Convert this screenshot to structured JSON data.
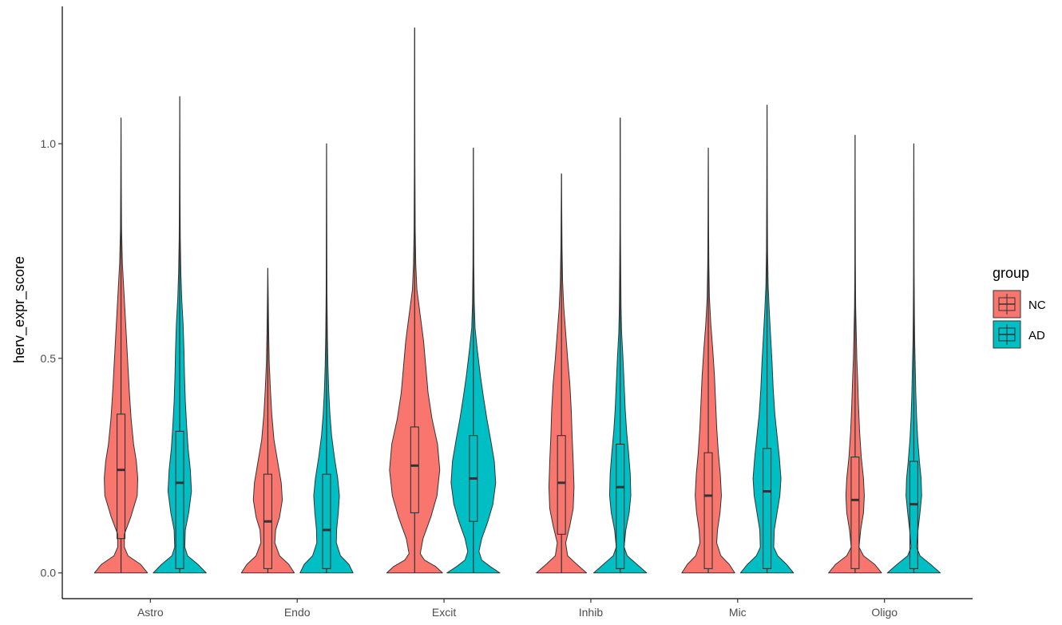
{
  "chart_data": {
    "type": "violin",
    "categories": [
      "Astro",
      "Endo",
      "Excit",
      "Inhib",
      "Mic",
      "Oligo"
    ],
    "ylabel": "herv_expr_score",
    "xlabel": "",
    "ylim": [
      -0.06,
      1.32
    ],
    "yticks": [
      0.0,
      0.5,
      1.0
    ],
    "ytick_labels": [
      "0.0",
      "0.5",
      "1.0"
    ],
    "grid": false,
    "legend": {
      "title": "group",
      "placement": "right",
      "entries": [
        "NC",
        "AD"
      ]
    },
    "colors": {
      "NC": "#F8766D",
      "AD": "#00BFC4"
    },
    "series": [
      {
        "name": "NC",
        "max": [
          1.06,
          0.71,
          1.27,
          0.93,
          0.99,
          1.02
        ],
        "q1": [
          0.08,
          0.01,
          0.14,
          0.09,
          0.01,
          0.01
        ],
        "median": [
          0.24,
          0.12,
          0.25,
          0.21,
          0.18,
          0.17
        ],
        "q3": [
          0.37,
          0.23,
          0.34,
          0.32,
          0.28,
          0.27
        ],
        "violin_width": [
          [
            [
              0,
              0.95
            ],
            [
              0.02,
              0.7
            ],
            [
              0.04,
              0.25
            ],
            [
              0.06,
              0.12
            ],
            [
              0.09,
              0.12
            ],
            [
              0.13,
              0.35
            ],
            [
              0.18,
              0.58
            ],
            [
              0.22,
              0.6
            ],
            [
              0.26,
              0.55
            ],
            [
              0.3,
              0.45
            ],
            [
              0.36,
              0.36
            ],
            [
              0.42,
              0.3
            ],
            [
              0.48,
              0.25
            ],
            [
              0.54,
              0.2
            ],
            [
              0.6,
              0.15
            ],
            [
              0.66,
              0.1
            ],
            [
              0.72,
              0.05
            ],
            [
              0.8,
              0.02
            ],
            [
              0.9,
              0.01
            ],
            [
              1.06,
              0
            ]
          ],
          [
            [
              0,
              0.95
            ],
            [
              0.02,
              0.75
            ],
            [
              0.04,
              0.42
            ],
            [
              0.07,
              0.25
            ],
            [
              0.1,
              0.28
            ],
            [
              0.13,
              0.42
            ],
            [
              0.17,
              0.52
            ],
            [
              0.21,
              0.48
            ],
            [
              0.26,
              0.35
            ],
            [
              0.31,
              0.22
            ],
            [
              0.37,
              0.14
            ],
            [
              0.43,
              0.09
            ],
            [
              0.49,
              0.05
            ],
            [
              0.56,
              0.03
            ],
            [
              0.64,
              0.015
            ],
            [
              0.71,
              0
            ]
          ],
          [
            [
              0,
              1
            ],
            [
              0.015,
              0.75
            ],
            [
              0.03,
              0.35
            ],
            [
              0.045,
              0.2
            ],
            [
              0.08,
              0.3
            ],
            [
              0.13,
              0.58
            ],
            [
              0.18,
              0.8
            ],
            [
              0.24,
              0.9
            ],
            [
              0.3,
              0.82
            ],
            [
              0.36,
              0.62
            ],
            [
              0.42,
              0.48
            ],
            [
              0.48,
              0.4
            ],
            [
              0.54,
              0.32
            ],
            [
              0.6,
              0.2
            ],
            [
              0.66,
              0.08
            ],
            [
              0.72,
              0.04
            ],
            [
              0.8,
              0.02
            ],
            [
              0.95,
              0.01
            ],
            [
              1.27,
              0
            ]
          ],
          [
            [
              0,
              0.9
            ],
            [
              0.02,
              0.55
            ],
            [
              0.04,
              0.22
            ],
            [
              0.07,
              0.15
            ],
            [
              0.11,
              0.3
            ],
            [
              0.15,
              0.42
            ],
            [
              0.2,
              0.45
            ],
            [
              0.26,
              0.42
            ],
            [
              0.32,
              0.38
            ],
            [
              0.38,
              0.35
            ],
            [
              0.44,
              0.3
            ],
            [
              0.5,
              0.22
            ],
            [
              0.56,
              0.15
            ],
            [
              0.62,
              0.08
            ],
            [
              0.68,
              0.04
            ],
            [
              0.76,
              0.02
            ],
            [
              0.85,
              0.01
            ],
            [
              0.93,
              0
            ]
          ],
          [
            [
              0,
              0.95
            ],
            [
              0.02,
              0.75
            ],
            [
              0.04,
              0.45
            ],
            [
              0.07,
              0.3
            ],
            [
              0.1,
              0.33
            ],
            [
              0.14,
              0.42
            ],
            [
              0.18,
              0.47
            ],
            [
              0.23,
              0.43
            ],
            [
              0.28,
              0.36
            ],
            [
              0.34,
              0.3
            ],
            [
              0.4,
              0.26
            ],
            [
              0.46,
              0.22
            ],
            [
              0.52,
              0.16
            ],
            [
              0.58,
              0.09
            ],
            [
              0.64,
              0.04
            ],
            [
              0.72,
              0.02
            ],
            [
              0.82,
              0.01
            ],
            [
              0.99,
              0
            ]
          ],
          [
            [
              0,
              0.95
            ],
            [
              0.02,
              0.7
            ],
            [
              0.04,
              0.3
            ],
            [
              0.06,
              0.14
            ],
            [
              0.1,
              0.2
            ],
            [
              0.14,
              0.3
            ],
            [
              0.18,
              0.33
            ],
            [
              0.22,
              0.3
            ],
            [
              0.27,
              0.22
            ],
            [
              0.33,
              0.16
            ],
            [
              0.39,
              0.12
            ],
            [
              0.45,
              0.09
            ],
            [
              0.5,
              0.06
            ],
            [
              0.56,
              0.04
            ],
            [
              0.62,
              0.02
            ],
            [
              0.72,
              0.01
            ],
            [
              1.02,
              0
            ]
          ]
        ]
      },
      {
        "name": "AD",
        "max": [
          1.11,
          1.0,
          0.99,
          1.06,
          1.09,
          1.0
        ],
        "q1": [
          0.01,
          0.01,
          0.12,
          0.01,
          0.01,
          0.01
        ],
        "median": [
          0.21,
          0.1,
          0.22,
          0.2,
          0.19,
          0.16
        ],
        "q3": [
          0.33,
          0.23,
          0.32,
          0.3,
          0.29,
          0.26
        ],
        "violin_width": [
          [
            [
              0,
              0.95
            ],
            [
              0.02,
              0.65
            ],
            [
              0.04,
              0.28
            ],
            [
              0.06,
              0.18
            ],
            [
              0.1,
              0.2
            ],
            [
              0.14,
              0.32
            ],
            [
              0.19,
              0.42
            ],
            [
              0.24,
              0.38
            ],
            [
              0.29,
              0.3
            ],
            [
              0.34,
              0.25
            ],
            [
              0.4,
              0.2
            ],
            [
              0.46,
              0.17
            ],
            [
              0.52,
              0.15
            ],
            [
              0.58,
              0.12
            ],
            [
              0.64,
              0.07
            ],
            [
              0.7,
              0.04
            ],
            [
              0.78,
              0.02
            ],
            [
              0.9,
              0.01
            ],
            [
              1.11,
              0
            ]
          ],
          [
            [
              0,
              0.95
            ],
            [
              0.02,
              0.8
            ],
            [
              0.04,
              0.5
            ],
            [
              0.07,
              0.35
            ],
            [
              0.1,
              0.36
            ],
            [
              0.14,
              0.42
            ],
            [
              0.18,
              0.46
            ],
            [
              0.22,
              0.4
            ],
            [
              0.27,
              0.28
            ],
            [
              0.32,
              0.18
            ],
            [
              0.37,
              0.12
            ],
            [
              0.42,
              0.08
            ],
            [
              0.48,
              0.05
            ],
            [
              0.55,
              0.03
            ],
            [
              0.65,
              0.015
            ],
            [
              0.8,
              0.008
            ],
            [
              1.0,
              0
            ]
          ],
          [
            [
              0,
              0.95
            ],
            [
              0.015,
              0.6
            ],
            [
              0.03,
              0.3
            ],
            [
              0.05,
              0.2
            ],
            [
              0.08,
              0.3
            ],
            [
              0.12,
              0.52
            ],
            [
              0.16,
              0.7
            ],
            [
              0.21,
              0.8
            ],
            [
              0.26,
              0.75
            ],
            [
              0.31,
              0.62
            ],
            [
              0.36,
              0.48
            ],
            [
              0.41,
              0.36
            ],
            [
              0.46,
              0.25
            ],
            [
              0.52,
              0.14
            ],
            [
              0.57,
              0.06
            ],
            [
              0.63,
              0.03
            ],
            [
              0.72,
              0.015
            ],
            [
              0.85,
              0.008
            ],
            [
              0.99,
              0
            ]
          ],
          [
            [
              0,
              0.95
            ],
            [
              0.02,
              0.6
            ],
            [
              0.04,
              0.25
            ],
            [
              0.06,
              0.14
            ],
            [
              0.1,
              0.2
            ],
            [
              0.14,
              0.32
            ],
            [
              0.18,
              0.38
            ],
            [
              0.23,
              0.36
            ],
            [
              0.28,
              0.3
            ],
            [
              0.33,
              0.23
            ],
            [
              0.38,
              0.18
            ],
            [
              0.44,
              0.14
            ],
            [
              0.5,
              0.1
            ],
            [
              0.56,
              0.05
            ],
            [
              0.62,
              0.03
            ],
            [
              0.7,
              0.02
            ],
            [
              0.8,
              0.01
            ],
            [
              1.06,
              0
            ]
          ],
          [
            [
              0,
              0.95
            ],
            [
              0.02,
              0.7
            ],
            [
              0.04,
              0.38
            ],
            [
              0.06,
              0.24
            ],
            [
              0.1,
              0.26
            ],
            [
              0.14,
              0.36
            ],
            [
              0.18,
              0.46
            ],
            [
              0.22,
              0.5
            ],
            [
              0.27,
              0.44
            ],
            [
              0.32,
              0.36
            ],
            [
              0.37,
              0.28
            ],
            [
              0.43,
              0.22
            ],
            [
              0.49,
              0.18
            ],
            [
              0.55,
              0.13
            ],
            [
              0.61,
              0.08
            ],
            [
              0.67,
              0.04
            ],
            [
              0.75,
              0.02
            ],
            [
              0.88,
              0.01
            ],
            [
              1.09,
              0
            ]
          ],
          [
            [
              0,
              0.95
            ],
            [
              0.02,
              0.6
            ],
            [
              0.04,
              0.22
            ],
            [
              0.06,
              0.1
            ],
            [
              0.1,
              0.15
            ],
            [
              0.14,
              0.22
            ],
            [
              0.18,
              0.28
            ],
            [
              0.22,
              0.26
            ],
            [
              0.26,
              0.2
            ],
            [
              0.31,
              0.14
            ],
            [
              0.36,
              0.1
            ],
            [
              0.42,
              0.07
            ],
            [
              0.48,
              0.05
            ],
            [
              0.54,
              0.03
            ],
            [
              0.6,
              0.02
            ],
            [
              0.7,
              0.01
            ],
            [
              1.0,
              0
            ]
          ]
        ]
      }
    ]
  }
}
